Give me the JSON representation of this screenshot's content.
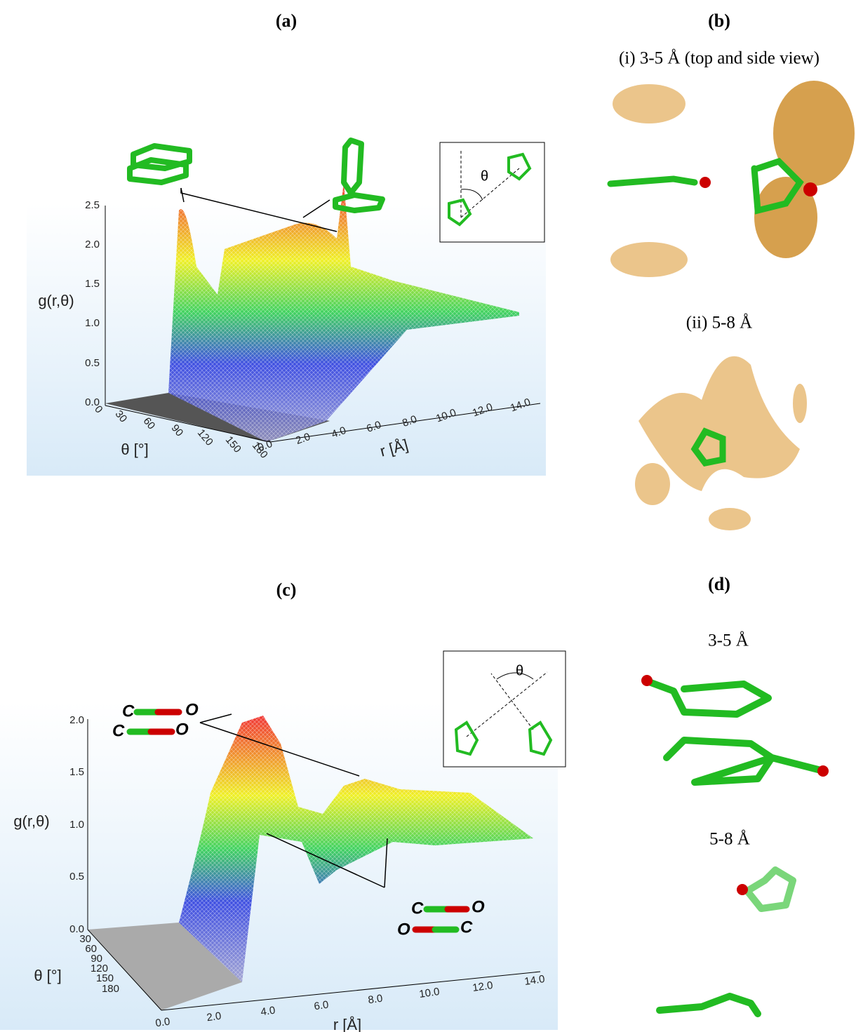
{
  "panels": [
    {
      "label": "(a)",
      "y_axis_label": "g(r,θ)",
      "y_ticks": [
        "2.5",
        "2.0",
        "1.5",
        "1.0",
        "0.5",
        "0.0"
      ],
      "theta_axis_label": "θ [°]",
      "theta_ticks": [
        "0",
        "30",
        "60",
        "90",
        "120",
        "150",
        "180"
      ],
      "r_axis_label": "r [Å]",
      "r_ticks": [
        "0.0",
        "2.0",
        "4.0",
        "6.0",
        "8.0",
        "10.0",
        "12.0",
        "14.0"
      ],
      "inset_label": "θ"
    },
    {
      "label": "(b)",
      "sections": [
        "(i) 3-5 Å (top and side view)",
        "(ii) 5-8 Å"
      ]
    },
    {
      "label": "(c)",
      "y_axis_label": "g(r,θ)",
      "y_ticks": [
        "2.0",
        "1.5",
        "1.0",
        "0.5",
        "0.0"
      ],
      "theta_axis_label": "θ [°]",
      "theta_ticks": [
        "30",
        "60",
        "90",
        "120",
        "150",
        "180"
      ],
      "r_axis_label": "r [Å]",
      "r_ticks": [
        "0.0",
        "2.0",
        "4.0",
        "6.0",
        "8.0",
        "10.0",
        "12.0",
        "14.0"
      ],
      "inset_label": "θ",
      "annotations": [
        "C",
        "O",
        "C",
        "O",
        "C",
        "O",
        "O",
        "C"
      ]
    },
    {
      "label": "(d)",
      "sections": [
        "3-5 Å",
        "5-8 Å"
      ]
    }
  ]
}
